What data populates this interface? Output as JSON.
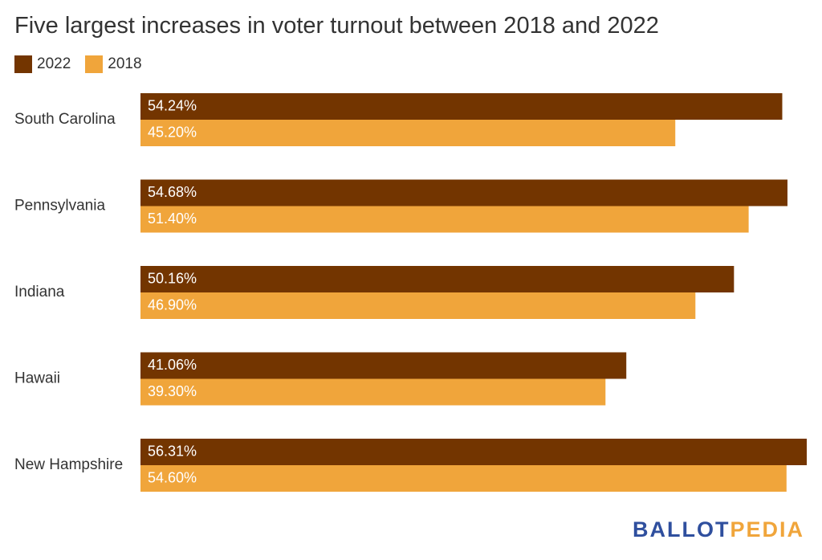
{
  "chart_data": {
    "type": "bar",
    "orientation": "horizontal",
    "title": "Five largest increases in voter turnout between 2018 and 2022",
    "categories": [
      "South Carolina",
      "Pennsylvania",
      "Indiana",
      "Hawaii",
      "New Hampshire"
    ],
    "series": [
      {
        "name": "2022",
        "color": "#733500",
        "values": [
          54.24,
          54.68,
          50.16,
          41.06,
          56.31
        ],
        "labels": [
          "54.24%",
          "54.68%",
          "50.16%",
          "41.06%",
          "56.31%"
        ]
      },
      {
        "name": "2018",
        "color": "#f0a53b",
        "values": [
          45.2,
          51.4,
          46.9,
          39.3,
          54.6
        ],
        "labels": [
          "45.20%",
          "51.40%",
          "46.90%",
          "39.30%",
          "54.60%"
        ]
      }
    ],
    "xlim": [
      0,
      56.31
    ],
    "grid": false,
    "legend_position": "top-left"
  },
  "brand": {
    "part1": "BALLOT",
    "part2": "PEDIA"
  }
}
